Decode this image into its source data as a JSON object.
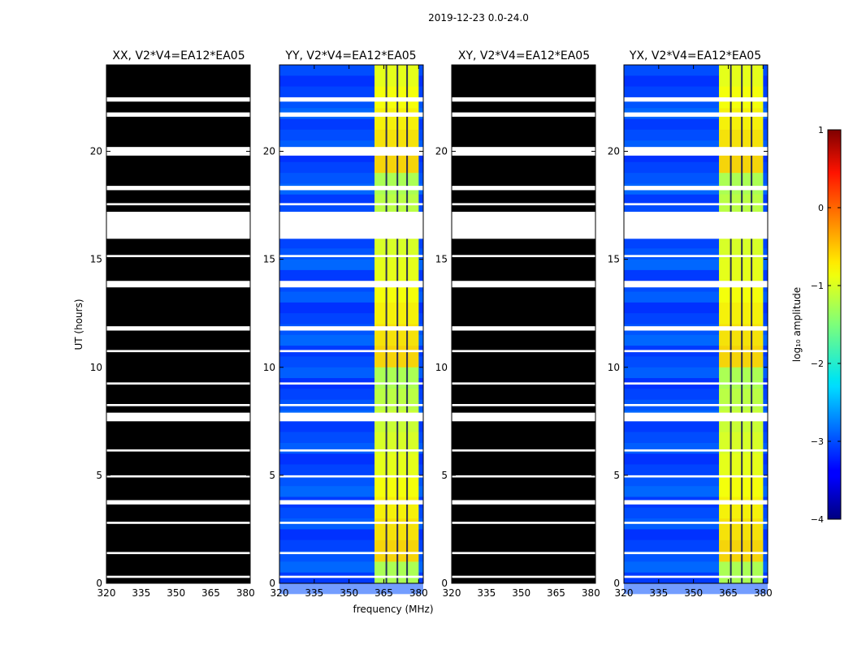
{
  "chart_data": {
    "type": "heatmap",
    "title": "2019-12-23 0.0-24.0",
    "xlabel": "frequency (MHz)",
    "ylabel": "UT (hours)",
    "xlim": [
      320,
      382
    ],
    "ylim": [
      0,
      24
    ],
    "x_ticks": [
      "320",
      "335",
      "350",
      "365",
      "380"
    ],
    "y_ticks": [
      "0",
      "5",
      "10",
      "15",
      "20"
    ],
    "panels": [
      {
        "name": "xx",
        "title": "XX, V2*V4=EA12*EA05",
        "rendering": "all masked (black)"
      },
      {
        "name": "yy",
        "title": "YY, V2*V4=EA12*EA05",
        "rendering": "log10 amplitude colormap"
      },
      {
        "name": "xy",
        "title": "XY, V2*V4=EA12*EA05",
        "rendering": "all masked (black)"
      },
      {
        "name": "yx",
        "title": "YX, V2*V4=EA12*EA05",
        "rendering": "log10 amplitude colormap"
      }
    ],
    "strong_signal_band_mhz": [
      361,
      380
    ],
    "background_log10_amplitude": -3,
    "band_log10_amplitude": -1,
    "gaps_hours": [
      [
        0.25,
        0.35
      ],
      [
        1.35,
        1.45
      ],
      [
        2.75,
        2.85
      ],
      [
        3.65,
        3.85
      ],
      [
        4.9,
        5.0
      ],
      [
        6.1,
        6.2
      ],
      [
        7.5,
        7.9
      ],
      [
        8.2,
        8.3
      ],
      [
        9.2,
        9.3
      ],
      [
        10.7,
        10.8
      ],
      [
        11.7,
        11.9
      ],
      [
        13.7,
        14.0
      ],
      [
        15.1,
        15.2
      ],
      [
        15.95,
        17.2
      ],
      [
        17.5,
        17.6
      ],
      [
        18.2,
        18.4
      ],
      [
        19.8,
        20.2
      ],
      [
        21.6,
        21.8
      ],
      [
        22.3,
        22.5
      ]
    ],
    "colorbar": {
      "label": "log₁₀ amplitude",
      "range": [
        -4,
        1
      ],
      "ticks": [
        "1",
        "0",
        "−1",
        "−2",
        "−3",
        "−4"
      ]
    }
  }
}
